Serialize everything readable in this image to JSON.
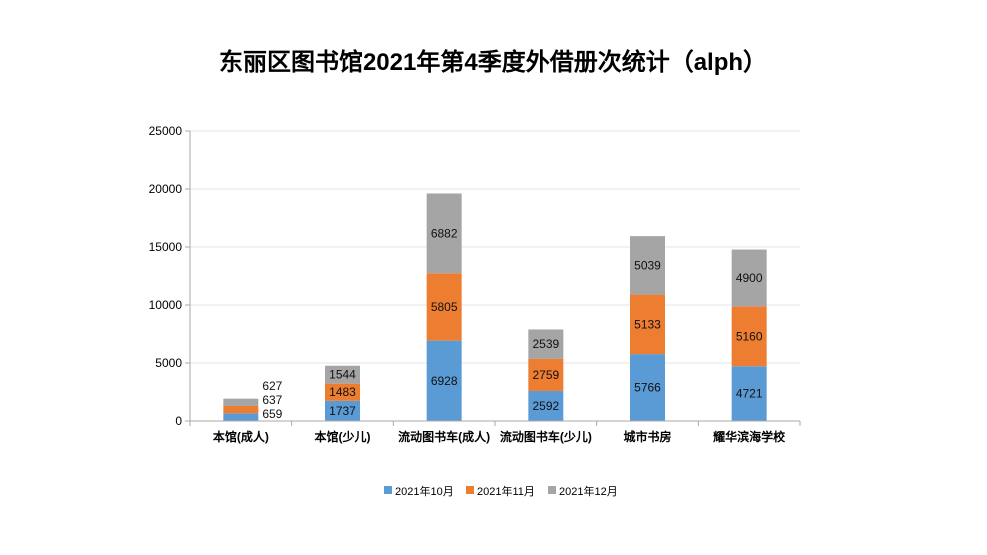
{
  "chart_data": {
    "type": "bar",
    "stacked": true,
    "title": "东丽区图书馆2021年第4季度外借册次统计（alph）",
    "xlabel": "",
    "ylabel": "",
    "ylim": [
      0,
      25000
    ],
    "yticks": [
      0,
      5000,
      10000,
      15000,
      20000,
      25000
    ],
    "grid": true,
    "legend_position": "bottom",
    "categories": [
      "本馆(成人)",
      "本馆(少儿)",
      "流动图书车(成人)",
      "流动图书车(少儿)",
      "城市书房",
      "耀华滨海学校"
    ],
    "series": [
      {
        "name": "2021年10月",
        "color": "#5b9bd5",
        "values": [
          659,
          1737,
          6928,
          2592,
          5766,
          4721
        ]
      },
      {
        "name": "2021年11月",
        "color": "#ed7d31",
        "values": [
          637,
          1483,
          5805,
          2759,
          5133,
          5160
        ]
      },
      {
        "name": "2021年12月",
        "color": "#a5a5a5",
        "values": [
          627,
          1544,
          6882,
          2539,
          5039,
          4900
        ]
      }
    ]
  }
}
